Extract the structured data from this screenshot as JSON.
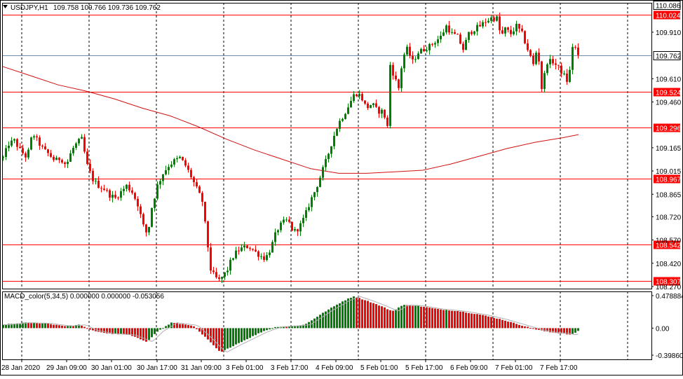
{
  "header": {
    "symbol": "USDJPY,H1",
    "ohlc": "109.758 109.766 109.736 109.762",
    "menu_icon": "triangle-down-icon"
  },
  "macd_label": "MACD_color(5,34,5) 0.000000 0.000000 -0.053056",
  "colors": {
    "bull": "#008000",
    "bear": "#ff0000",
    "ma": "#d01010",
    "level": "#ff0000",
    "grid": "#000000",
    "bid": "#6a8fb0",
    "signal": "#b0b0b0"
  },
  "chart_data": [
    {
      "type": "candlestick",
      "symbol": "USDJPY",
      "timeframe": "H1",
      "ylim": [
        108.27,
        110.086
      ],
      "y_ticks": [
        "109.910",
        "109.610",
        "109.460",
        "109.165",
        "109.015",
        "108.865",
        "108.720",
        "108.570",
        "108.420",
        "108.270"
      ],
      "x_ticks": [
        "28 Jan 2020",
        "29 Jan 09:00",
        "30 Jan 01:00",
        "30 Jan 17:00",
        "31 Jan 09:00",
        "3 Feb 01:00",
        "3 Feb 17:00",
        "4 Feb 09:00",
        "5 Feb 01:00",
        "5 Feb 17:00",
        "6 Feb 09:00",
        "7 Feb 01:00",
        "7 Feb 17:00"
      ],
      "horizontal_levels": [
        {
          "value": 110.086,
          "label": "110.086",
          "style": "top"
        },
        {
          "value": 110.024,
          "label": "110.024",
          "style": "red"
        },
        {
          "value": 109.762,
          "label": "109.762",
          "style": "bid"
        },
        {
          "value": 109.524,
          "label": "109.524",
          "style": "red"
        },
        {
          "value": 109.296,
          "label": "109.296",
          "style": "red"
        },
        {
          "value": 108.967,
          "label": "108.967",
          "style": "red"
        },
        {
          "value": 108.542,
          "label": "108.542",
          "style": "red"
        },
        {
          "value": 108.307,
          "label": "108.307",
          "style": "red"
        }
      ],
      "close_path": [
        [
          0,
          109.1
        ],
        [
          8,
          109.19
        ],
        [
          16,
          109.21
        ],
        [
          24,
          109.15
        ],
        [
          34,
          109.1
        ],
        [
          42,
          109.26
        ],
        [
          50,
          109.2
        ],
        [
          58,
          109.15
        ],
        [
          66,
          109.12
        ],
        [
          74,
          109.08
        ],
        [
          82,
          109.1
        ],
        [
          90,
          109.05
        ],
        [
          98,
          109.15
        ],
        [
          106,
          109.2
        ],
        [
          112,
          109.22
        ],
        [
          120,
          109.05
        ],
        [
          128,
          108.96
        ],
        [
          136,
          108.92
        ],
        [
          144,
          108.9
        ],
        [
          152,
          108.86
        ],
        [
          160,
          108.84
        ],
        [
          168,
          108.88
        ],
        [
          176,
          108.92
        ],
        [
          184,
          108.88
        ],
        [
          192,
          108.8
        ],
        [
          200,
          108.66
        ],
        [
          206,
          108.6
        ],
        [
          212,
          108.78
        ],
        [
          220,
          108.92
        ],
        [
          228,
          109.0
        ],
        [
          236,
          109.05
        ],
        [
          244,
          109.08
        ],
        [
          252,
          109.1
        ],
        [
          260,
          109.05
        ],
        [
          268,
          108.98
        ],
        [
          276,
          108.9
        ],
        [
          284,
          108.82
        ],
        [
          290,
          108.6
        ],
        [
          296,
          108.38
        ],
        [
          302,
          108.33
        ],
        [
          308,
          108.31
        ],
        [
          314,
          108.34
        ],
        [
          320,
          108.38
        ],
        [
          326,
          108.45
        ],
        [
          334,
          108.5
        ],
        [
          342,
          108.52
        ],
        [
          350,
          108.53
        ],
        [
          358,
          108.5
        ],
        [
          366,
          108.47
        ],
        [
          374,
          108.45
        ],
        [
          382,
          108.52
        ],
        [
          390,
          108.63
        ],
        [
          398,
          108.68
        ],
        [
          406,
          108.7
        ],
        [
          414,
          108.62
        ],
        [
          422,
          108.65
        ],
        [
          430,
          108.72
        ],
        [
          438,
          108.82
        ],
        [
          446,
          108.9
        ],
        [
          454,
          109.0
        ],
        [
          462,
          109.1
        ],
        [
          470,
          109.22
        ],
        [
          478,
          109.32
        ],
        [
          486,
          109.38
        ],
        [
          494,
          109.45
        ],
        [
          502,
          109.52
        ],
        [
          510,
          109.5
        ],
        [
          518,
          109.42
        ],
        [
          526,
          109.45
        ],
        [
          534,
          109.4
        ],
        [
          542,
          109.4
        ],
        [
          548,
          109.3
        ],
        [
          552,
          109.7
        ],
        [
          558,
          109.62
        ],
        [
          564,
          109.55
        ],
        [
          570,
          109.75
        ],
        [
          576,
          109.8
        ],
        [
          584,
          109.72
        ],
        [
          592,
          109.78
        ],
        [
          600,
          109.8
        ],
        [
          608,
          109.82
        ],
        [
          616,
          109.85
        ],
        [
          624,
          109.88
        ],
        [
          632,
          109.95
        ],
        [
          640,
          109.9
        ],
        [
          648,
          109.88
        ],
        [
          656,
          109.8
        ],
        [
          664,
          109.9
        ],
        [
          672,
          109.93
        ],
        [
          680,
          109.95
        ],
        [
          688,
          109.98
        ],
        [
          696,
          110.0
        ],
        [
          704,
          110.0
        ],
        [
          710,
          109.88
        ],
        [
          716,
          109.93
        ],
        [
          724,
          109.9
        ],
        [
          732,
          109.95
        ],
        [
          740,
          109.9
        ],
        [
          748,
          109.8
        ],
        [
          756,
          109.7
        ],
        [
          762,
          109.82
        ],
        [
          768,
          109.55
        ],
        [
          776,
          109.72
        ],
        [
          784,
          109.72
        ],
        [
          792,
          109.68
        ],
        [
          800,
          109.63
        ],
        [
          806,
          109.58
        ],
        [
          812,
          109.82
        ],
        [
          818,
          109.8
        ],
        [
          822,
          109.76
        ]
      ],
      "ma_path": [
        [
          0,
          109.69
        ],
        [
          40,
          109.63
        ],
        [
          80,
          109.57
        ],
        [
          120,
          109.53
        ],
        [
          160,
          109.48
        ],
        [
          200,
          109.42
        ],
        [
          240,
          109.37
        ],
        [
          280,
          109.3
        ],
        [
          320,
          109.22
        ],
        [
          360,
          109.15
        ],
        [
          400,
          109.09
        ],
        [
          440,
          109.03
        ],
        [
          480,
          109.0
        ],
        [
          520,
          109.0
        ],
        [
          560,
          109.01
        ],
        [
          600,
          109.02
        ],
        [
          640,
          109.06
        ],
        [
          680,
          109.11
        ],
        [
          720,
          109.16
        ],
        [
          760,
          109.2
        ],
        [
          800,
          109.23
        ],
        [
          822,
          109.25
        ]
      ]
    },
    {
      "type": "histogram",
      "name": "MACD_color(5,34,5)",
      "ylim": [
        -0.398607,
        0.478884
      ],
      "y_ticks": [
        "0.478884",
        "0.00",
        "-0.398607"
      ],
      "values_path": [
        [
          0,
          0.05
        ],
        [
          30,
          0.08
        ],
        [
          60,
          0.07
        ],
        [
          90,
          0.03
        ],
        [
          110,
          0.05
        ],
        [
          125,
          -0.03
        ],
        [
          150,
          -0.08
        ],
        [
          180,
          -0.1
        ],
        [
          205,
          -0.2
        ],
        [
          220,
          -0.05
        ],
        [
          240,
          0.08
        ],
        [
          270,
          0.04
        ],
        [
          290,
          -0.15
        ],
        [
          310,
          -0.36
        ],
        [
          330,
          -0.25
        ],
        [
          350,
          -0.15
        ],
        [
          370,
          -0.05
        ],
        [
          390,
          0.02
        ],
        [
          410,
          0.03
        ],
        [
          430,
          0.05
        ],
        [
          460,
          0.25
        ],
        [
          485,
          0.4
        ],
        [
          500,
          0.47
        ],
        [
          520,
          0.4
        ],
        [
          540,
          0.32
        ],
        [
          555,
          0.25
        ],
        [
          570,
          0.34
        ],
        [
          590,
          0.33
        ],
        [
          620,
          0.28
        ],
        [
          650,
          0.25
        ],
        [
          680,
          0.2
        ],
        [
          710,
          0.13
        ],
        [
          740,
          0.04
        ],
        [
          760,
          -0.02
        ],
        [
          780,
          -0.06
        ],
        [
          800,
          -0.08
        ],
        [
          810,
          -0.1
        ],
        [
          822,
          -0.03
        ]
      ]
    }
  ]
}
